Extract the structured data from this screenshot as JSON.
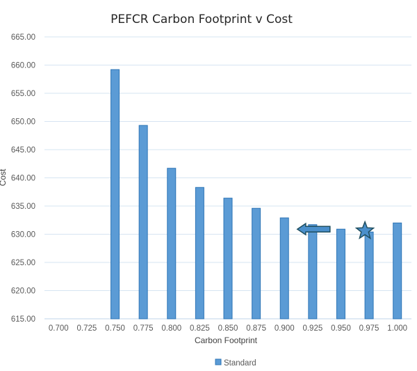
{
  "chart_data": {
    "type": "bar",
    "title": "PEFCR Carbon Footprint v Cost",
    "xlabel": "Carbon Footprint",
    "ylabel": "Cost",
    "ylim": [
      615,
      665
    ],
    "yticks": [
      "615.00",
      "620.00",
      "625.00",
      "630.00",
      "635.00",
      "640.00",
      "645.00",
      "650.00",
      "655.00",
      "660.00",
      "665.00"
    ],
    "categories": [
      "0.700",
      "0.725",
      "0.750",
      "0.775",
      "0.800",
      "0.825",
      "0.850",
      "0.875",
      "0.900",
      "0.925",
      "0.950",
      "0.975",
      "1.000"
    ],
    "series": [
      {
        "name": "Standard",
        "color": "#5b9bd5",
        "values": [
          null,
          null,
          659.2,
          649.3,
          641.7,
          638.3,
          636.4,
          634.6,
          632.9,
          631.7,
          630.9,
          630.4,
          632.0
        ]
      }
    ],
    "grid": true,
    "legend": "bottom",
    "annotations": [
      {
        "type": "arrow-left",
        "near_category": "0.925",
        "value": 630.9
      },
      {
        "type": "star",
        "near_category": "0.975",
        "value": 630.6
      }
    ]
  }
}
